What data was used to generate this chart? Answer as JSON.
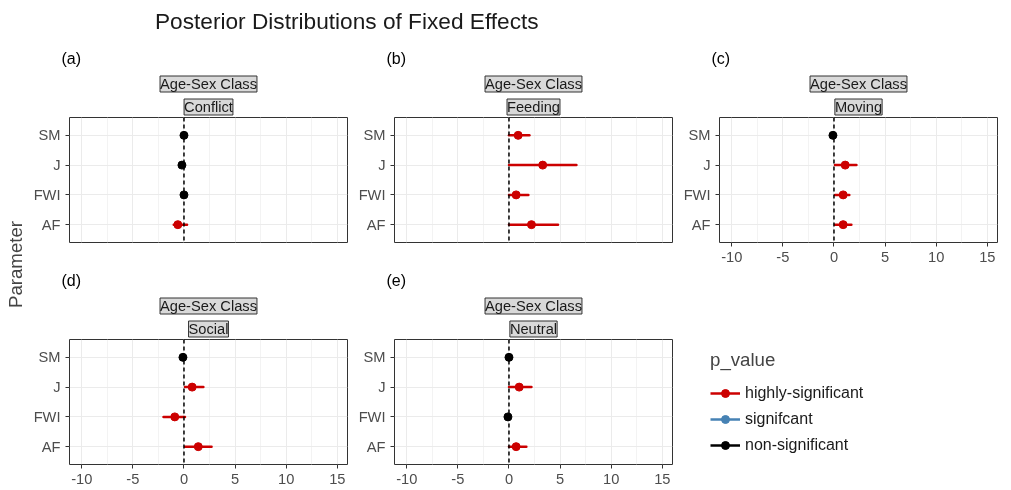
{
  "chart_data": [
    {
      "type": "other",
      "title": "Posterior Distributions of Fixed Effects",
      "ylabel": "Parameter"
    },
    {
      "type": "scatter",
      "orientation": "horizontal",
      "title": "Conflict",
      "annotations": [
        "(a)",
        "Age-Sex Class"
      ],
      "categories": [
        "SM",
        "J",
        "FWI",
        "AF"
      ],
      "xlim": [
        -11.2,
        16
      ],
      "xticks": [
        -10,
        -5,
        0,
        5,
        10,
        15
      ],
      "tick_labels": "y",
      "grid": true,
      "marker": "circle",
      "ref_lines": [
        {
          "axis": "x",
          "value": 0,
          "color": "#000000",
          "line_style": "dashed"
        }
      ],
      "series": [
        {
          "color": "#cc0000",
          "values": [
            null,
            null,
            null,
            -0.6
          ],
          "errors": [
            null,
            null,
            null,
            [
              -1.0,
              0.3
            ]
          ]
        },
        {
          "color": "#000000",
          "values": [
            0,
            -0.2,
            0,
            null
          ]
        }
      ]
    },
    {
      "type": "scatter",
      "orientation": "horizontal",
      "title": "Feeding",
      "annotations": [
        "(b)",
        "Age-Sex Class"
      ],
      "categories": [
        "SM",
        "J",
        "FWI",
        "AF"
      ],
      "xlim": [
        -11.2,
        16
      ],
      "xticks": [
        -10,
        -5,
        0,
        5,
        10,
        15
      ],
      "tick_labels": "y",
      "grid": true,
      "marker": "circle",
      "ref_lines": [
        {
          "axis": "x",
          "value": 0,
          "color": "#000000",
          "line_style": "dashed"
        }
      ],
      "series": [
        {
          "color": "#cc0000",
          "values": [
            0.9,
            3.3,
            0.7,
            2.2
          ],
          "errors": [
            [
              0,
              2.0
            ],
            [
              0,
              6.6
            ],
            [
              0,
              1.9
            ],
            [
              0,
              4.8
            ]
          ]
        }
      ]
    },
    {
      "type": "scatter",
      "orientation": "horizontal",
      "title": "Moving",
      "annotations": [
        "(c)",
        "Age-Sex Class"
      ],
      "categories": [
        "SM",
        "J",
        "FWI",
        "AF"
      ],
      "xlim": [
        -11.2,
        16
      ],
      "xticks": [
        -10,
        -5,
        0,
        5,
        10,
        15
      ],
      "grid": true,
      "marker": "circle",
      "ref_lines": [
        {
          "axis": "x",
          "value": 0,
          "color": "#000000",
          "line_style": "dashed"
        }
      ],
      "series": [
        {
          "color": "#cc0000",
          "values": [
            null,
            1.1,
            0.9,
            0.9
          ],
          "errors": [
            null,
            [
              0.1,
              2.2
            ],
            [
              0.1,
              1.5
            ],
            [
              0.1,
              1.7
            ]
          ]
        },
        {
          "color": "#000000",
          "values": [
            -0.1,
            null,
            null,
            null
          ]
        }
      ]
    },
    {
      "type": "scatter",
      "orientation": "horizontal",
      "title": "Social",
      "annotations": [
        "(d)",
        "Age-Sex Class"
      ],
      "categories": [
        "SM",
        "J",
        "FWI",
        "AF"
      ],
      "xlim": [
        -11.2,
        16
      ],
      "xticks": [
        -10,
        -5,
        0,
        5,
        10,
        15
      ],
      "grid": true,
      "marker": "circle",
      "ref_lines": [
        {
          "axis": "x",
          "value": 0,
          "color": "#000000",
          "line_style": "dashed"
        }
      ],
      "series": [
        {
          "color": "#cc0000",
          "values": [
            null,
            0.8,
            -0.9,
            1.4
          ],
          "errors": [
            null,
            [
              0.1,
              1.9
            ],
            [
              -2.0,
              0.1
            ],
            [
              0.1,
              2.7
            ]
          ]
        },
        {
          "color": "#000000",
          "values": [
            -0.1,
            null,
            null,
            null
          ]
        }
      ]
    },
    {
      "type": "scatter",
      "orientation": "horizontal",
      "title": "Neutral",
      "annotations": [
        "(e)",
        "Age-Sex Class"
      ],
      "categories": [
        "SM",
        "J",
        "FWI",
        "AF"
      ],
      "xlim": [
        -11.2,
        16
      ],
      "xticks": [
        -10,
        -5,
        0,
        5,
        10,
        15
      ],
      "grid": true,
      "marker": "circle",
      "legend": "right",
      "legend_title": "p_value",
      "ref_lines": [
        {
          "axis": "x",
          "value": 0,
          "color": "#000000",
          "line_style": "dashed"
        }
      ],
      "series": [
        {
          "name": "highly-significant",
          "color": "#cc0000",
          "values": [
            null,
            1.0,
            null,
            0.7
          ],
          "errors": [
            null,
            [
              0,
              2.2
            ],
            null,
            [
              0,
              1.7
            ]
          ]
        },
        {
          "name": "signifcant",
          "color": "#4682b4",
          "values": [
            null,
            null,
            null,
            null
          ]
        },
        {
          "name": "non-significant",
          "color": "#000000",
          "values": [
            0,
            null,
            -0.1,
            null
          ]
        }
      ]
    }
  ]
}
